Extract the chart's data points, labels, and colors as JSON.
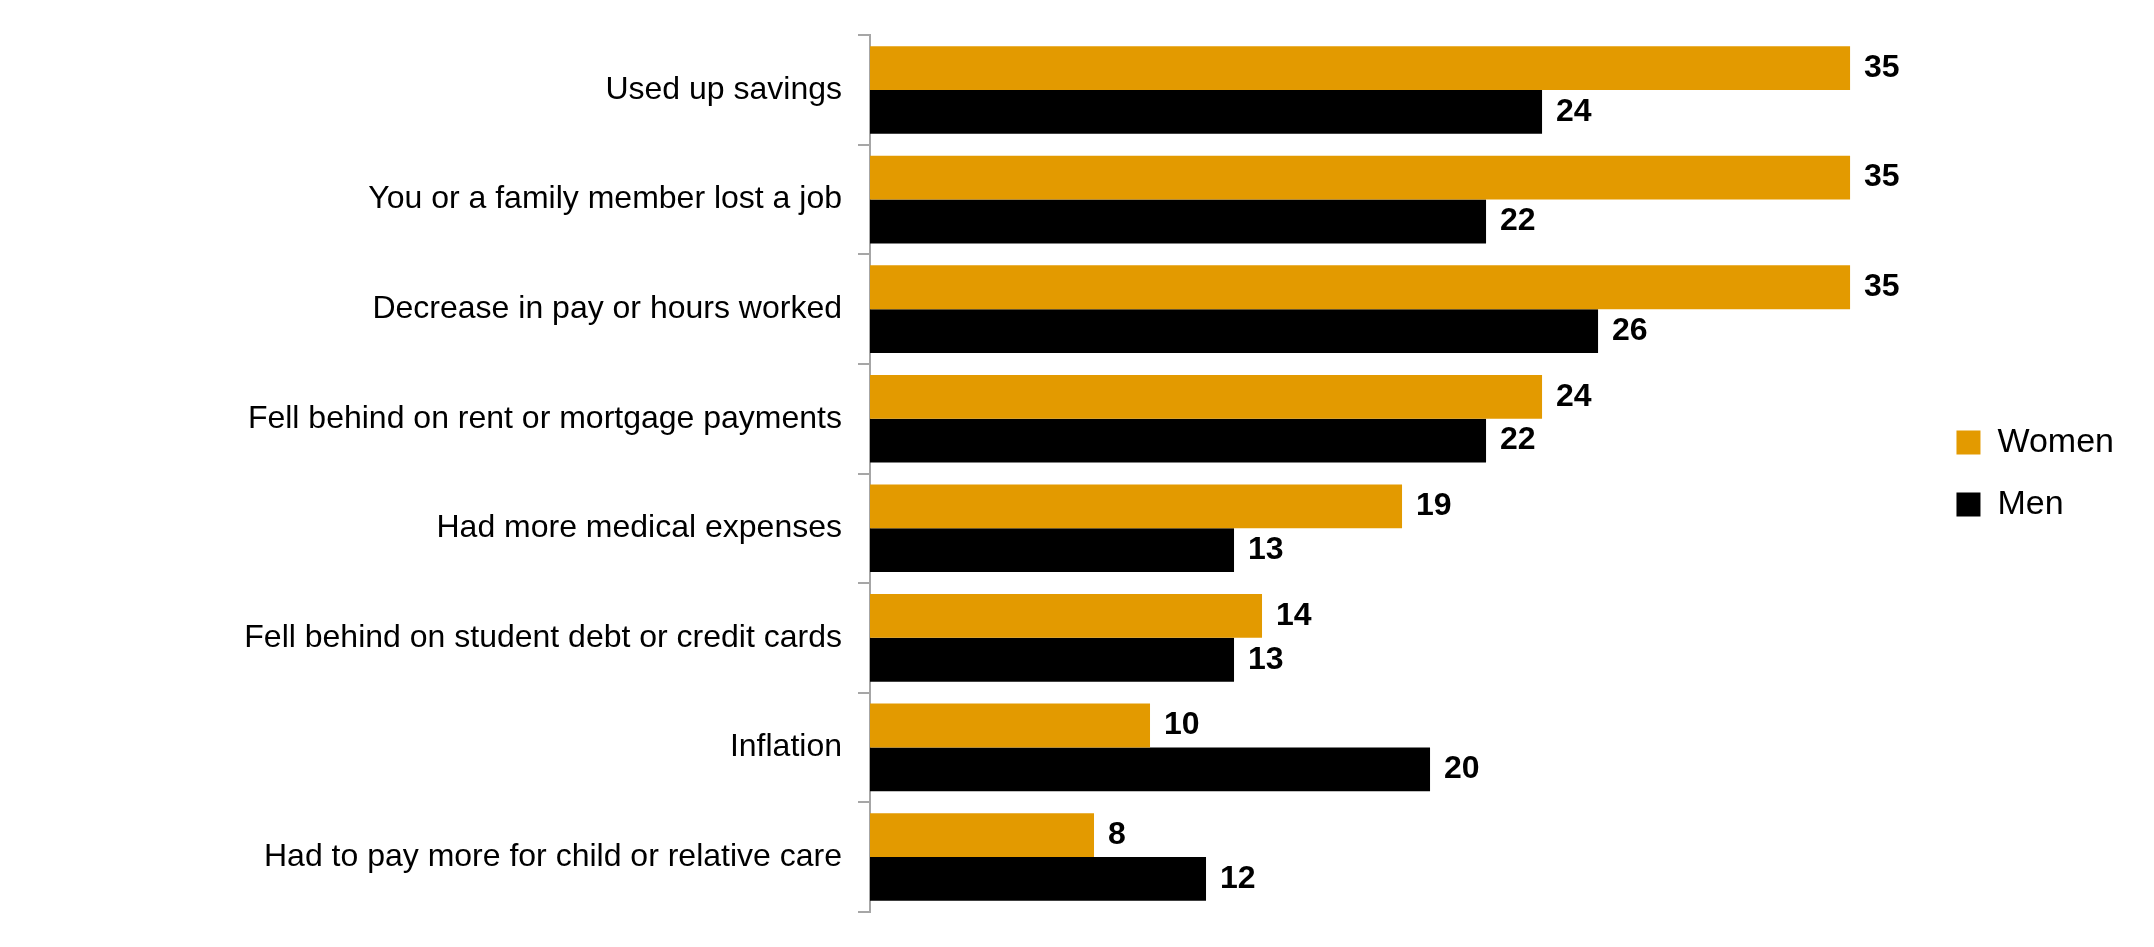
{
  "chart_data": {
    "type": "bar",
    "orientation": "horizontal",
    "categories": [
      "Used up savings",
      "You or a family member lost a job",
      "Decrease in pay or hours worked",
      "Fell behind on rent or mortgage payments",
      "Had more medical expenses",
      "Fell behind on student debt or credit cards",
      "Inflation",
      "Had to pay more for child or relative care"
    ],
    "series": [
      {
        "name": "Women",
        "color": "#e39a00",
        "values": [
          35,
          35,
          35,
          24,
          19,
          14,
          10,
          8
        ]
      },
      {
        "name": "Men",
        "color": "#000000",
        "values": [
          24,
          22,
          26,
          22,
          13,
          13,
          20,
          12
        ]
      }
    ],
    "data_labels": true,
    "legend": "right",
    "grid": false
  }
}
